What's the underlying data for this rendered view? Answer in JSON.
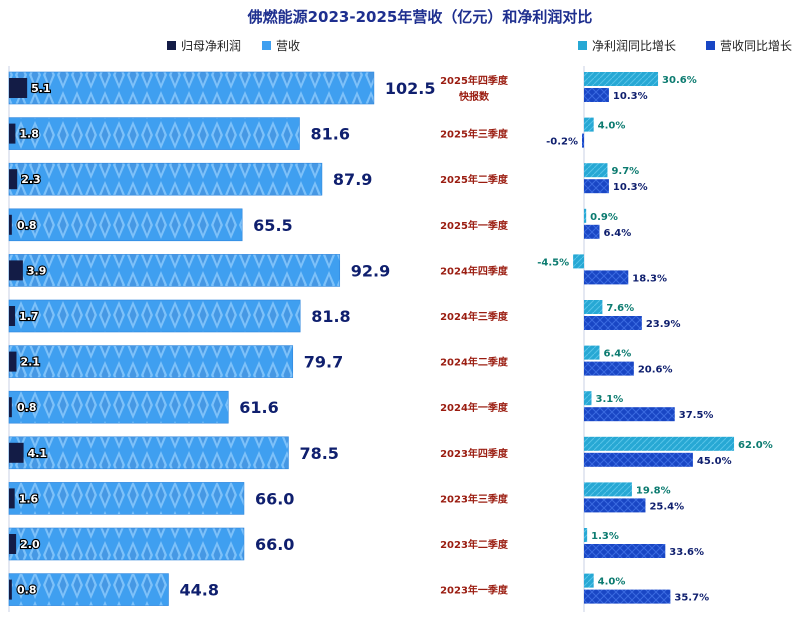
{
  "chart_data": {
    "type": "bar",
    "title": "佛燃能源2023-2025年营收（亿元）和净利润对比",
    "legend_left": [
      "归母净利润",
      "营收"
    ],
    "legend_right": [
      "净利润同比增长",
      "营收同比增长"
    ],
    "categories": [
      "2025年四季度\n快报数",
      "2025年三季度",
      "2025年二季度",
      "2025年一季度",
      "2024年四季度",
      "2024年三季度",
      "2024年二季度",
      "2024年一季度",
      "2023年四季度",
      "2023年三季度",
      "2023年二季度",
      "2023年一季度"
    ],
    "series": [
      {
        "name": "营收",
        "values": [
          102.5,
          81.6,
          87.9,
          65.5,
          92.9,
          81.8,
          79.7,
          61.6,
          78.5,
          66.0,
          66.0,
          44.8
        ],
        "labels": [
          "102.5",
          "81.6",
          "87.9",
          "65.5",
          "92.9",
          "81.8",
          "79.7",
          "61.6",
          "78.5",
          "66.0",
          "66.0",
          "44.8"
        ]
      },
      {
        "name": "归母净利润",
        "values": [
          5.1,
          1.8,
          2.3,
          0.8,
          3.9,
          1.7,
          2.1,
          0.8,
          4.1,
          1.6,
          2.0,
          0.8
        ],
        "labels": [
          "5.1",
          "1.8",
          "2.3",
          "0.8",
          "3.9",
          "1.7",
          "2.1",
          "0.8",
          "4.1",
          "1.6",
          "2.0",
          "0.8"
        ]
      },
      {
        "name": "净利润同比增长",
        "values": [
          30.6,
          4.0,
          9.7,
          0.9,
          -4.5,
          7.6,
          6.4,
          3.1,
          62.0,
          19.8,
          1.3,
          4.0
        ],
        "labels": [
          "30.6%",
          "4.0%",
          "9.7%",
          "0.9%",
          "-4.5%",
          "7.6%",
          "6.4%",
          "3.1%",
          "62.0%",
          "19.8%",
          "1.3%",
          "4.0%"
        ]
      },
      {
        "name": "营收同比增长",
        "values": [
          10.3,
          -0.2,
          10.3,
          6.4,
          18.3,
          23.9,
          20.6,
          37.5,
          45.0,
          25.4,
          33.6,
          35.7
        ],
        "labels": [
          "10.3%",
          "-0.2%",
          "10.3%",
          "6.4%",
          "18.3%",
          "23.9%",
          "20.6%",
          "37.5%",
          "45.0%",
          "25.4%",
          "33.6%",
          "35.7%"
        ]
      }
    ],
    "colors": {
      "revenue": "#3f9ff0",
      "net_profit": "#131c46",
      "np_growth": "#27a8d4",
      "rev_growth": "#1946c4"
    }
  }
}
